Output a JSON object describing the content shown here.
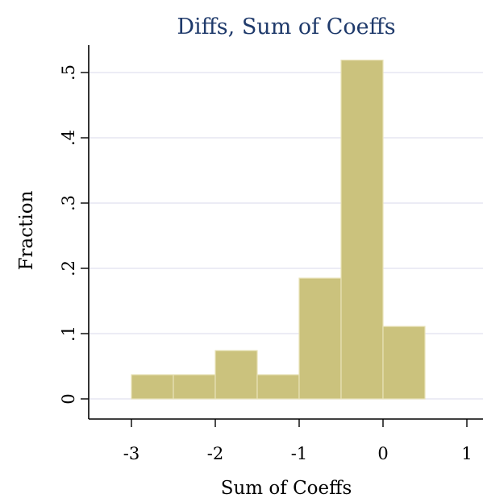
{
  "chart_data": {
    "type": "bar",
    "title": "Diffs, Sum of Coeffs",
    "xlabel": "Sum of Coeffs",
    "ylabel": "Fraction",
    "bins": [
      {
        "x0": -3.0,
        "x1": -2.5,
        "value": 0.037
      },
      {
        "x0": -2.5,
        "x1": -2.0,
        "value": 0.037
      },
      {
        "x0": -2.0,
        "x1": -1.5,
        "value": 0.074
      },
      {
        "x0": -1.5,
        "x1": -1.0,
        "value": 0.037
      },
      {
        "x0": -1.0,
        "x1": -0.5,
        "value": 0.185
      },
      {
        "x0": -0.5,
        "x1": 0.0,
        "value": 0.519
      },
      {
        "x0": 0.0,
        "x1": 0.5,
        "value": 0.111
      }
    ],
    "xlim": [
      -3.5,
      1.2
    ],
    "ylim": [
      -0.03,
      0.55
    ],
    "xticks": [
      -3,
      -2,
      -1,
      0,
      1
    ],
    "xtick_labels": [
      "-3",
      "-2",
      "-1",
      "0",
      "1"
    ],
    "yticks": [
      0,
      0.1,
      0.2,
      0.3,
      0.4,
      0.5
    ],
    "ytick_labels": [
      "0",
      ".1",
      ".2",
      ".3",
      ".4",
      ".5"
    ],
    "grid": true,
    "bar_color": "#cbc27d",
    "grid_color": "#e6e6f2",
    "title_color": "#1f3a6b"
  }
}
